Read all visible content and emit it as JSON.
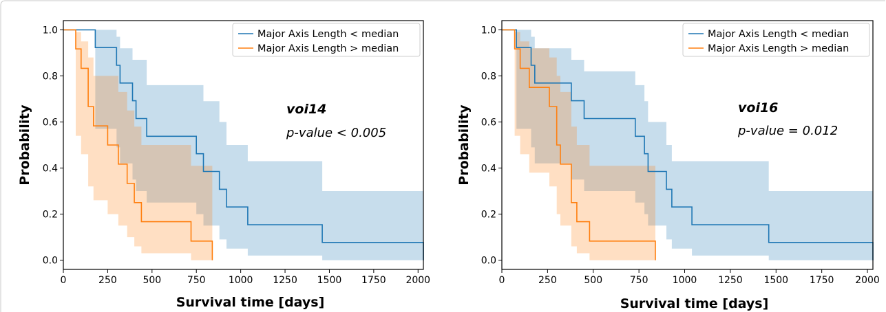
{
  "colors": {
    "series_lt": "#1f77b4",
    "series_gt": "#ff7f0e",
    "fill_lt": "#1f77b4",
    "fill_gt": "#ff7f0e"
  },
  "chart_data": [
    {
      "type": "line",
      "xlabel": "Survival time [days]",
      "ylabel": "Probability",
      "xlim": [
        0,
        2030
      ],
      "ylim": [
        -0.04,
        1.04
      ],
      "xticks": [
        0,
        250,
        500,
        750,
        1000,
        1250,
        1500,
        1750,
        2000
      ],
      "yticks": [
        "0.0",
        "0.2",
        "0.4",
        "0.6",
        "0.8",
        "1.0"
      ],
      "grid": false,
      "legend_position": "top-right",
      "annotation": {
        "title": "voi14",
        "text": "p-value < 0.005"
      },
      "series": [
        {
          "name": "Major Axis Length < median",
          "x": [
            0,
            180,
            180,
            300,
            300,
            320,
            320,
            390,
            390,
            410,
            410,
            470,
            470,
            750,
            750,
            790,
            790,
            880,
            880,
            920,
            920,
            1040,
            1040,
            1460,
            1460,
            2030,
            2030
          ],
          "y": [
            1.0,
            1.0,
            0.923,
            0.923,
            0.846,
            0.846,
            0.769,
            0.769,
            0.692,
            0.692,
            0.615,
            0.615,
            0.538,
            0.538,
            0.462,
            0.462,
            0.385,
            0.385,
            0.308,
            0.308,
            0.231,
            0.231,
            0.154,
            0.154,
            0.077,
            0.077,
            0.0
          ],
          "ci_upper": [
            [
              0,
              1.0
            ],
            [
              180,
              1.0
            ],
            [
              180,
              1.0
            ],
            [
              300,
              1.0
            ],
            [
              300,
              0.97
            ],
            [
              320,
              0.97
            ],
            [
              320,
              0.92
            ],
            [
              390,
              0.92
            ],
            [
              390,
              0.87
            ],
            [
              470,
              0.87
            ],
            [
              470,
              0.76
            ],
            [
              750,
              0.76
            ],
            [
              750,
              0.76
            ],
            [
              790,
              0.76
            ],
            [
              790,
              0.69
            ],
            [
              880,
              0.69
            ],
            [
              880,
              0.6
            ],
            [
              920,
              0.6
            ],
            [
              920,
              0.5
            ],
            [
              1040,
              0.5
            ],
            [
              1040,
              0.43
            ],
            [
              1460,
              0.43
            ],
            [
              1460,
              0.3
            ],
            [
              2030,
              0.3
            ]
          ],
          "ci_lower": [
            [
              0,
              1.0
            ],
            [
              180,
              1.0
            ],
            [
              180,
              0.57
            ],
            [
              300,
              0.57
            ],
            [
              300,
              0.49
            ],
            [
              320,
              0.49
            ],
            [
              320,
              0.42
            ],
            [
              390,
              0.42
            ],
            [
              390,
              0.35
            ],
            [
              410,
              0.35
            ],
            [
              410,
              0.3
            ],
            [
              470,
              0.3
            ],
            [
              470,
              0.25
            ],
            [
              750,
              0.25
            ],
            [
              750,
              0.2
            ],
            [
              790,
              0.2
            ],
            [
              790,
              0.15
            ],
            [
              880,
              0.15
            ],
            [
              880,
              0.09
            ],
            [
              920,
              0.09
            ],
            [
              920,
              0.05
            ],
            [
              1040,
              0.05
            ],
            [
              1040,
              0.02
            ],
            [
              1460,
              0.02
            ],
            [
              1460,
              0.0
            ],
            [
              2030,
              0.0
            ]
          ]
        },
        {
          "name": "Major Axis Length > median",
          "x": [
            0,
            70,
            70,
            100,
            100,
            140,
            140,
            170,
            170,
            250,
            250,
            310,
            310,
            360,
            360,
            400,
            400,
            440,
            440,
            720,
            720,
            840,
            840
          ],
          "y": [
            1.0,
            1.0,
            0.917,
            0.917,
            0.833,
            0.833,
            0.667,
            0.667,
            0.583,
            0.583,
            0.5,
            0.5,
            0.417,
            0.417,
            0.333,
            0.333,
            0.25,
            0.25,
            0.167,
            0.167,
            0.083,
            0.083,
            0.0
          ],
          "ci_upper": [
            [
              0,
              1.0
            ],
            [
              70,
              1.0
            ],
            [
              70,
              0.99
            ],
            [
              100,
              0.99
            ],
            [
              100,
              0.95
            ],
            [
              140,
              0.95
            ],
            [
              140,
              0.88
            ],
            [
              170,
              0.88
            ],
            [
              170,
              0.8
            ],
            [
              250,
              0.8
            ],
            [
              250,
              0.8
            ],
            [
              310,
              0.8
            ],
            [
              310,
              0.73
            ],
            [
              360,
              0.73
            ],
            [
              360,
              0.65
            ],
            [
              400,
              0.65
            ],
            [
              400,
              0.58
            ],
            [
              440,
              0.58
            ],
            [
              440,
              0.5
            ],
            [
              720,
              0.5
            ],
            [
              720,
              0.41
            ],
            [
              840,
              0.41
            ],
            [
              840,
              0.02
            ]
          ],
          "ci_lower": [
            [
              0,
              1.0
            ],
            [
              70,
              1.0
            ],
            [
              70,
              0.54
            ],
            [
              100,
              0.54
            ],
            [
              100,
              0.46
            ],
            [
              140,
              0.46
            ],
            [
              140,
              0.32
            ],
            [
              170,
              0.32
            ],
            [
              170,
              0.26
            ],
            [
              250,
              0.26
            ],
            [
              250,
              0.2
            ],
            [
              310,
              0.2
            ],
            [
              310,
              0.15
            ],
            [
              360,
              0.15
            ],
            [
              360,
              0.1
            ],
            [
              400,
              0.1
            ],
            [
              400,
              0.06
            ],
            [
              440,
              0.06
            ],
            [
              440,
              0.03
            ],
            [
              720,
              0.03
            ],
            [
              720,
              0.0
            ],
            [
              840,
              0.0
            ]
          ]
        }
      ]
    },
    {
      "type": "line",
      "xlabel": "Survival time [days]",
      "ylabel": "Probability",
      "xlim": [
        0,
        2030
      ],
      "ylim": [
        -0.04,
        1.04
      ],
      "xticks": [
        0,
        250,
        500,
        750,
        1000,
        1250,
        1500,
        1750,
        2000
      ],
      "yticks": [
        "0.0",
        "0.2",
        "0.4",
        "0.6",
        "0.8",
        "1.0"
      ],
      "grid": false,
      "legend_position": "top-right",
      "annotation": {
        "title": "voi16",
        "text": "p-value = 0.012"
      },
      "series": [
        {
          "name": "Major Axis Length < median",
          "x": [
            0,
            80,
            80,
            160,
            160,
            180,
            180,
            380,
            380,
            450,
            450,
            730,
            730,
            780,
            780,
            800,
            800,
            900,
            900,
            930,
            930,
            1040,
            1040,
            1460,
            1460,
            2030,
            2030
          ],
          "y": [
            1.0,
            1.0,
            0.923,
            0.923,
            0.846,
            0.846,
            0.769,
            0.769,
            0.692,
            0.692,
            0.615,
            0.615,
            0.538,
            0.538,
            0.462,
            0.462,
            0.385,
            0.385,
            0.308,
            0.308,
            0.231,
            0.231,
            0.154,
            0.154,
            0.077,
            0.077,
            0.0
          ],
          "ci_upper": [
            [
              0,
              1.0
            ],
            [
              80,
              1.0
            ],
            [
              80,
              1.0
            ],
            [
              160,
              1.0
            ],
            [
              160,
              0.97
            ],
            [
              180,
              0.97
            ],
            [
              180,
              0.92
            ],
            [
              380,
              0.92
            ],
            [
              380,
              0.87
            ],
            [
              450,
              0.87
            ],
            [
              450,
              0.82
            ],
            [
              730,
              0.82
            ],
            [
              730,
              0.76
            ],
            [
              780,
              0.76
            ],
            [
              780,
              0.69
            ],
            [
              800,
              0.69
            ],
            [
              800,
              0.6
            ],
            [
              900,
              0.6
            ],
            [
              900,
              0.5
            ],
            [
              930,
              0.5
            ],
            [
              930,
              0.43
            ],
            [
              1040,
              0.43
            ],
            [
              1040,
              0.43
            ],
            [
              1460,
              0.43
            ],
            [
              1460,
              0.3
            ],
            [
              2030,
              0.3
            ]
          ],
          "ci_lower": [
            [
              0,
              1.0
            ],
            [
              80,
              1.0
            ],
            [
              80,
              0.57
            ],
            [
              160,
              0.57
            ],
            [
              160,
              0.49
            ],
            [
              180,
              0.49
            ],
            [
              180,
              0.42
            ],
            [
              380,
              0.42
            ],
            [
              380,
              0.35
            ],
            [
              450,
              0.35
            ],
            [
              450,
              0.3
            ],
            [
              730,
              0.3
            ],
            [
              730,
              0.25
            ],
            [
              780,
              0.25
            ],
            [
              780,
              0.2
            ],
            [
              800,
              0.2
            ],
            [
              800,
              0.15
            ],
            [
              900,
              0.15
            ],
            [
              900,
              0.09
            ],
            [
              930,
              0.09
            ],
            [
              930,
              0.05
            ],
            [
              1040,
              0.05
            ],
            [
              1040,
              0.02
            ],
            [
              1460,
              0.02
            ],
            [
              1460,
              0.0
            ],
            [
              2030,
              0.0
            ]
          ]
        },
        {
          "name": "Major Axis Length > median",
          "x": [
            0,
            70,
            70,
            100,
            100,
            150,
            150,
            260,
            260,
            300,
            300,
            320,
            320,
            380,
            380,
            410,
            410,
            480,
            480,
            840,
            840
          ],
          "y": [
            1.0,
            1.0,
            0.917,
            0.917,
            0.833,
            0.833,
            0.75,
            0.75,
            0.667,
            0.667,
            0.5,
            0.5,
            0.417,
            0.417,
            0.25,
            0.25,
            0.167,
            0.167,
            0.083,
            0.083,
            0.0
          ],
          "ci_upper": [
            [
              0,
              1.0
            ],
            [
              70,
              1.0
            ],
            [
              70,
              0.99
            ],
            [
              100,
              0.99
            ],
            [
              100,
              0.95
            ],
            [
              150,
              0.95
            ],
            [
              150,
              0.92
            ],
            [
              260,
              0.92
            ],
            [
              260,
              0.88
            ],
            [
              300,
              0.88
            ],
            [
              300,
              0.8
            ],
            [
              320,
              0.8
            ],
            [
              320,
              0.73
            ],
            [
              380,
              0.73
            ],
            [
              380,
              0.58
            ],
            [
              410,
              0.58
            ],
            [
              410,
              0.5
            ],
            [
              480,
              0.5
            ],
            [
              480,
              0.41
            ],
            [
              840,
              0.41
            ],
            [
              840,
              0.02
            ]
          ],
          "ci_lower": [
            [
              0,
              1.0
            ],
            [
              70,
              1.0
            ],
            [
              70,
              0.54
            ],
            [
              100,
              0.54
            ],
            [
              100,
              0.46
            ],
            [
              150,
              0.46
            ],
            [
              150,
              0.38
            ],
            [
              260,
              0.38
            ],
            [
              260,
              0.32
            ],
            [
              300,
              0.32
            ],
            [
              300,
              0.2
            ],
            [
              320,
              0.2
            ],
            [
              320,
              0.15
            ],
            [
              380,
              0.15
            ],
            [
              380,
              0.06
            ],
            [
              410,
              0.06
            ],
            [
              410,
              0.03
            ],
            [
              480,
              0.03
            ],
            [
              480,
              0.0
            ],
            [
              840,
              0.0
            ]
          ]
        }
      ]
    }
  ]
}
